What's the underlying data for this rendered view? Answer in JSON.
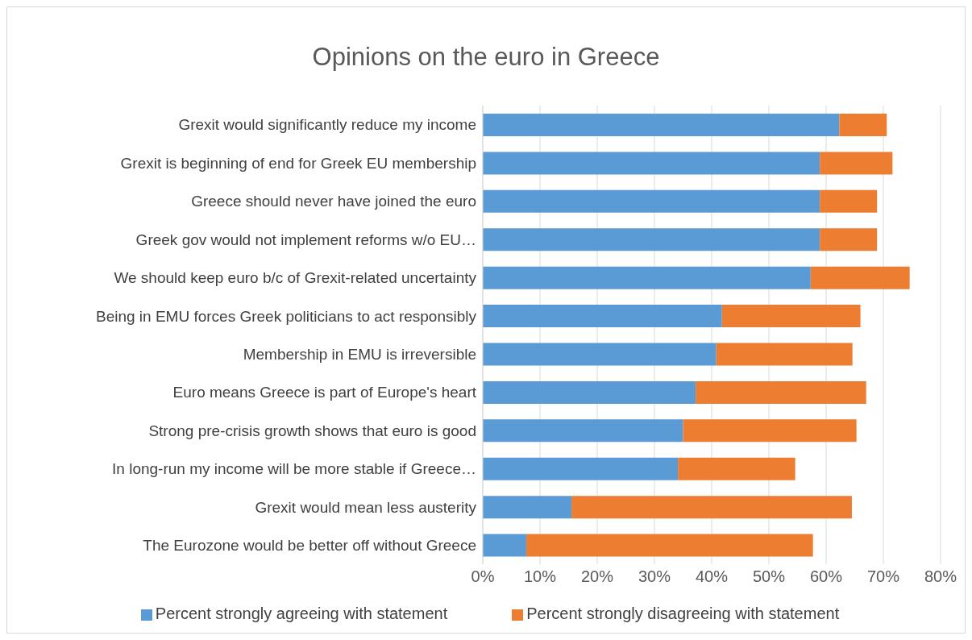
{
  "chart_data": {
    "type": "bar",
    "orientation": "horizontal",
    "stacked": true,
    "title": "Opinions on the euro in Greece",
    "categories": [
      "Grexit would significantly reduce my income",
      "Grexit is beginning of end for Greek EU membership",
      "Greece should never have joined the euro",
      "Greek gov would not implement reforms w/o EU…",
      "We should keep euro b/c of Grexit-related uncertainty",
      "Being in EMU forces Greek politicians to act responsibly",
      "Membership in EMU is irreversible",
      "Euro means Greece is part of Europe's heart",
      "Strong pre-crisis growth shows that euro is good",
      "In long-run my income will be more stable if Greece…",
      "Grexit would mean less austerity",
      "The Eurozone would be better off without Greece"
    ],
    "series": [
      {
        "name": "Percent strongly agreeing  with statement",
        "color": "#5b9bd5",
        "values": [
          62.3,
          58.9,
          58.9,
          58.9,
          57.3,
          41.8,
          40.8,
          37.2,
          35.0,
          34.1,
          15.5,
          7.6
        ]
      },
      {
        "name": "Percent strongly disagreeing  with statement",
        "color": "#ed7d31",
        "values": [
          8.3,
          12.7,
          10.0,
          10.0,
          17.3,
          24.2,
          23.8,
          29.8,
          30.3,
          20.5,
          49.0,
          50.1
        ]
      }
    ],
    "xlim": [
      0,
      80
    ],
    "xticks": [
      {
        "value": 0,
        "label": "0%"
      },
      {
        "value": 10,
        "label": "10%"
      },
      {
        "value": 20,
        "label": "20%"
      },
      {
        "value": 30,
        "label": "30%"
      },
      {
        "value": 40,
        "label": "40%"
      },
      {
        "value": 50,
        "label": "50%"
      },
      {
        "value": 60,
        "label": "60%"
      },
      {
        "value": 70,
        "label": "70%"
      },
      {
        "value": 80,
        "label": "80%"
      }
    ],
    "grid": "x",
    "legend": "bottom"
  }
}
